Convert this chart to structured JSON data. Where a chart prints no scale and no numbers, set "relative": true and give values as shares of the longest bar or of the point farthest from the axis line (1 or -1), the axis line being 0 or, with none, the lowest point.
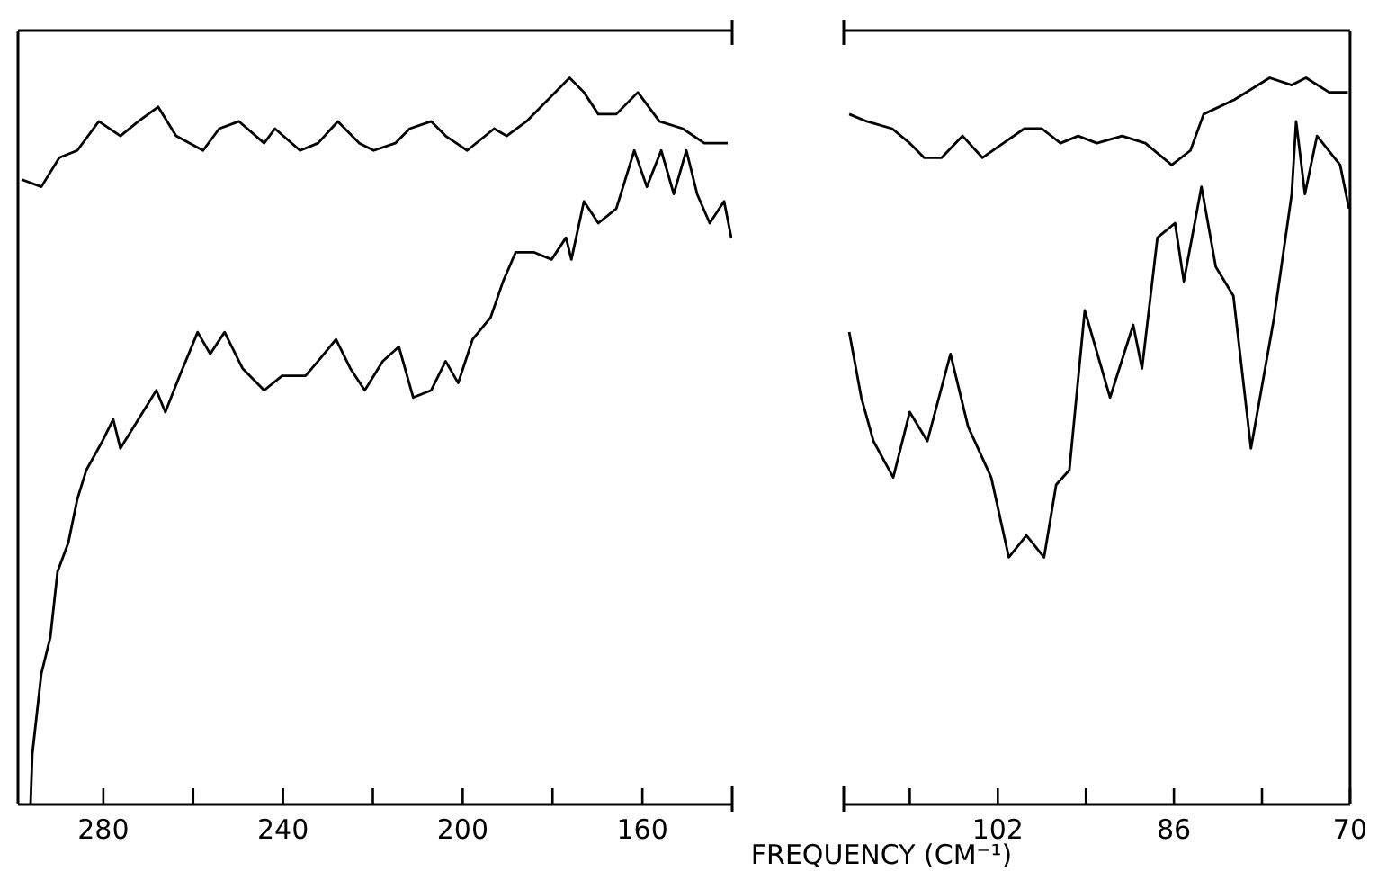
{
  "chart_data": [
    {
      "type": "line",
      "relative": true,
      "xlabel": "FREQUENCY (CM⁻¹)",
      "xlim": [
        299,
        140
      ],
      "xticks": [
        280,
        {
          "value": 260,
          "label": null
        },
        240,
        {
          "value": 220,
          "label": null
        },
        200,
        {
          "value": 180,
          "label": null
        },
        160
      ],
      "tick_labels": "x",
      "legend": false,
      "series": [
        {
          "color": "#000000",
          "x": [
            298.2,
            293.8,
            289.8,
            285.8,
            281,
            276.2,
            272.2,
            267.8,
            263.8,
            257.8,
            254.2,
            249.8,
            244.2,
            241.8,
            236.2,
            232.2,
            227.8,
            223,
            219.8,
            215,
            211.8,
            207,
            203.8,
            199,
            193,
            190.2,
            185.8,
            181,
            176.2,
            173,
            169.8,
            165.8,
            161,
            156.2,
            151,
            146.2,
            141
          ],
          "values": [
            0.86,
            0.85,
            0.89,
            0.9,
            0.94,
            0.92,
            0.94,
            0.96,
            0.92,
            0.9,
            0.93,
            0.94,
            0.91,
            0.93,
            0.9,
            0.91,
            0.94,
            0.91,
            0.9,
            0.91,
            0.93,
            0.94,
            0.92,
            0.9,
            0.93,
            0.92,
            0.94,
            0.97,
            1,
            0.98,
            0.95,
            0.95,
            0.98,
            0.94,
            0.93,
            0.91,
            0.91
          ]
        },
        {
          "color": "#000000",
          "x": [
            296.2,
            295.8,
            293.8,
            291.8,
            290.2,
            287.8,
            285.8,
            283.8,
            280.2,
            277.8,
            276.2,
            272.2,
            268.2,
            266.2,
            263,
            259,
            256.2,
            253,
            249,
            244.2,
            240.2,
            235,
            232.2,
            228.2,
            225,
            221.8,
            217.8,
            214.2,
            211,
            207,
            203.8,
            201,
            197.8,
            193.8,
            191,
            188.2,
            184.2,
            180.2,
            177,
            175.8,
            173,
            169.8,
            165.8,
            163.8,
            161.8,
            159,
            155.8,
            153,
            150.2,
            147.8,
            145,
            141.8,
            140.2
          ],
          "values": [
            0,
            0.07,
            0.18,
            0.23,
            0.32,
            0.36,
            0.42,
            0.46,
            0.5,
            0.53,
            0.49,
            0.53,
            0.57,
            0.54,
            0.59,
            0.65,
            0.62,
            0.65,
            0.6,
            0.57,
            0.59,
            0.59,
            0.61,
            0.64,
            0.6,
            0.57,
            0.61,
            0.63,
            0.56,
            0.57,
            0.61,
            0.58,
            0.64,
            0.67,
            0.72,
            0.76,
            0.76,
            0.75,
            0.78,
            0.75,
            0.83,
            0.8,
            0.82,
            0.86,
            0.9,
            0.85,
            0.9,
            0.84,
            0.9,
            0.84,
            0.8,
            0.83,
            0.78
          ]
        }
      ]
    },
    {
      "type": "line",
      "relative": true,
      "xlim": [
        116,
        70
      ],
      "xticks": [
        {
          "value": 110,
          "label": null
        },
        102,
        {
          "value": 94,
          "label": null
        },
        86,
        {
          "value": 78,
          "label": null
        },
        70
      ],
      "tick_labels": "x",
      "legend": false,
      "series": [
        {
          "color": "#000000",
          "x": [
            115.5,
            113.9,
            111.6,
            110,
            108.7,
            107.1,
            105.2,
            103.4,
            101.5,
            99.6,
            98,
            96.3,
            94.7,
            93,
            90.7,
            88.6,
            86.2,
            84.5,
            83.3,
            80.5,
            77.3,
            75.3,
            74,
            71.9,
            70.2
          ],
          "values": [
            0.95,
            0.94,
            0.93,
            0.91,
            0.89,
            0.89,
            0.92,
            0.89,
            0.91,
            0.93,
            0.93,
            0.91,
            0.92,
            0.91,
            0.92,
            0.91,
            0.88,
            0.9,
            0.95,
            0.97,
            1,
            0.99,
            1,
            0.98,
            0.98
          ]
        },
        {
          "color": "#000000",
          "x": [
            115.5,
            114.4,
            113.3,
            111.5,
            110,
            108.4,
            106.3,
            104.7,
            102.6,
            101,
            99.4,
            97.8,
            96.7,
            95.5,
            94.1,
            91.8,
            89.7,
            88.9,
            87.5,
            85.9,
            85.1,
            83.5,
            82.2,
            80.6,
            79,
            76.9,
            75.3,
            74.9,
            74.1,
            73,
            70.9,
            70.1
          ],
          "values": [
            0.65,
            0.56,
            0.5,
            0.45,
            0.54,
            0.5,
            0.62,
            0.52,
            0.45,
            0.34,
            0.37,
            0.34,
            0.44,
            0.46,
            0.68,
            0.56,
            0.66,
            0.6,
            0.78,
            0.8,
            0.72,
            0.85,
            0.74,
            0.7,
            0.49,
            0.67,
            0.84,
            0.94,
            0.84,
            0.92,
            0.88,
            0.82
          ]
        }
      ]
    }
  ]
}
